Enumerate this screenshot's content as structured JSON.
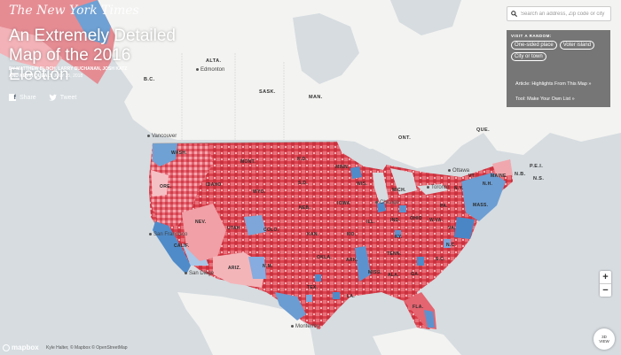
{
  "masthead": "The New York Times",
  "title": "An Extremely Detailed Map of the 2016 Election",
  "byline": {
    "authors_line1": "By MATTHEW BLOCH, LARRY BUCHANAN, JOSH KATZ",
    "authors_line2": "and KEVIN QUEALY",
    "date": "JULY 25, 2018"
  },
  "share": {
    "facebook": "Share",
    "twitter": "Tweet"
  },
  "search": {
    "placeholder": "Search an address, Zip code or city"
  },
  "panel": {
    "heading": "VISIT A RANDOM:",
    "pills": [
      "One-sided place",
      "Voter island",
      "City or town"
    ],
    "article_link": "Article: Highlights From This Map »",
    "tool_link": "Tool: Make Your Own List »"
  },
  "controls": {
    "zoom_in": "+",
    "zoom_out": "−",
    "view3d_line1": "3D",
    "view3d_line2": "VIEW"
  },
  "footer": {
    "logo": "mapbox",
    "attribution": "Kyle Halter, © Mapbox © OpenStreetMap"
  },
  "map_labels": {
    "provinces": [
      "B.C.",
      "ALTA.",
      "SASK.",
      "MAN.",
      "ONT.",
      "QUE.",
      "N.B.",
      "P.E.I.",
      "N.S."
    ],
    "cities": [
      "Edmonton",
      "Vancouver",
      "Ottawa",
      "Toronto",
      "Chicago",
      "San Francisco",
      "San Diego",
      "Monterrey"
    ],
    "states": [
      "WASH.",
      "ORE.",
      "IDAHO",
      "MONT.",
      "WYO.",
      "NEV.",
      "UTAH",
      "CALIF.",
      "ARIZ.",
      "COLO.",
      "N.M.",
      "N.D.",
      "S.D.",
      "NEB.",
      "KAN.",
      "OKLA.",
      "TEX.",
      "MINN.",
      "IOWA",
      "MO.",
      "ARK.",
      "LA.",
      "WIS.",
      "ILL.",
      "MICH.",
      "IND.",
      "OHIO",
      "KY.",
      "TENN.",
      "MISS.",
      "ALA.",
      "GA.",
      "FLA.",
      "S.C.",
      "N.C.",
      "VA.",
      "W.VA.",
      "PA.",
      "N.Y.",
      "VT.",
      "N.H.",
      "MASS.",
      "MAINE"
    ]
  },
  "colors": {
    "water": "#d6dce0",
    "land": "#f3f3f1",
    "strong_rep": "#d9404c",
    "lean_rep": "#f2a2a8",
    "strong_dem": "#3c7fc2",
    "lean_dem": "#a9c6e6"
  }
}
